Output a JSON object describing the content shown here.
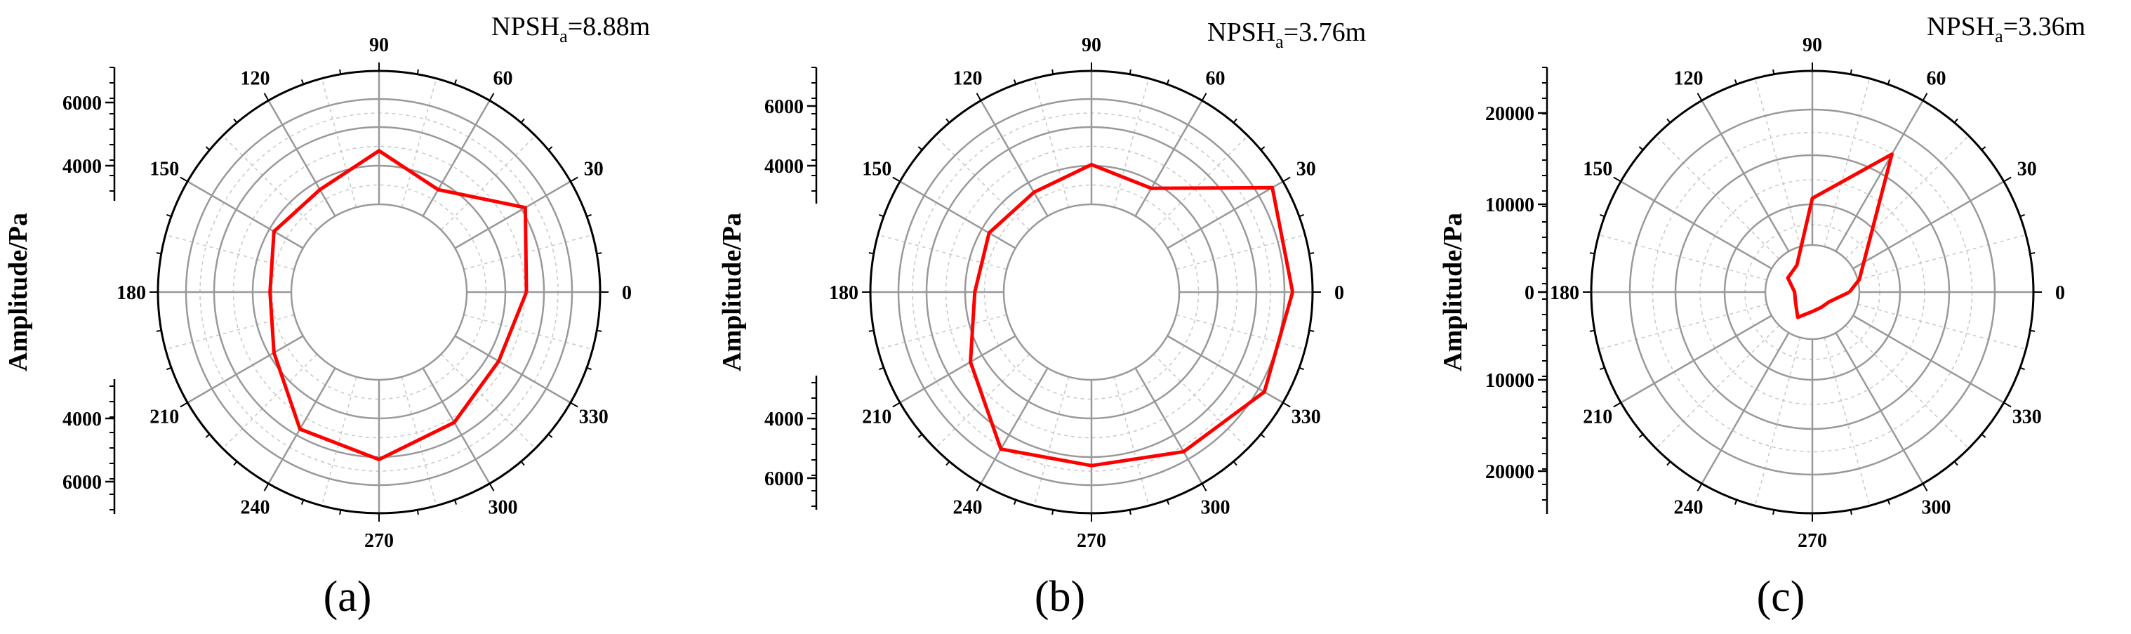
{
  "chart_data": [
    {
      "type": "radar",
      "panel_label": "(a)",
      "annotation": {
        "main": "NPSH",
        "sub": "a",
        "rest": "=8.88m"
      },
      "ylabel": "Amplitude/Pa",
      "angle_ticks": [
        "0",
        "30",
        "60",
        "90",
        "120",
        "150",
        "180",
        "210",
        "240",
        "270",
        "300",
        "330"
      ],
      "radial_ticks": [
        "4000",
        "6000"
      ],
      "rlim": [
        0,
        7200
      ],
      "grid": true,
      "series": [
        {
          "color": "#ff0000",
          "angles": [
            0,
            30,
            60,
            90,
            120,
            150,
            180,
            210,
            240,
            270,
            300,
            330,
            360
          ],
          "values": [
            4800,
            5500,
            3850,
            4600,
            3850,
            3950,
            3550,
            3950,
            5150,
            5450,
            4900,
            4500,
            4800
          ]
        }
      ]
    },
    {
      "type": "radar",
      "panel_label": "(b)",
      "annotation": {
        "main": "NPSH",
        "sub": "a",
        "rest": "=3.76m"
      },
      "ylabel": "Amplitude/Pa",
      "angle_ticks": [
        "0",
        "30",
        "60",
        "90",
        "120",
        "150",
        "180",
        "210",
        "240",
        "270",
        "300",
        "330"
      ],
      "radial_ticks": [
        "4000",
        "6000"
      ],
      "rlim": [
        0,
        7200
      ],
      "grid": true,
      "series": [
        {
          "color": "#ff0000",
          "angles": [
            0,
            30,
            60,
            90,
            120,
            150,
            180,
            210,
            240,
            270,
            300,
            330,
            360
          ],
          "values": [
            6550,
            6800,
            3900,
            4150,
            3750,
            3850,
            3800,
            4550,
            5900,
            5650,
            6000,
            6500,
            6550
          ]
        }
      ]
    },
    {
      "type": "radar",
      "panel_label": "(c)",
      "annotation": {
        "main": "NPSH",
        "sub": "a",
        "rest": "=3.36m"
      },
      "ylabel": "Amplitude/Pa",
      "angle_ticks": [
        "0",
        "30",
        "60",
        "90",
        "120",
        "150",
        "180",
        "210",
        "240",
        "270",
        "300",
        "330"
      ],
      "radial_ticks": [
        "0",
        "10000",
        "20000"
      ],
      "rlim": [
        0,
        25000
      ],
      "grid": true,
      "series": [
        {
          "color": "#ff0000",
          "angles": [
            0,
            15,
            60,
            90,
            120,
            150,
            180,
            210,
            240,
            270,
            300,
            330,
            360
          ],
          "values": [
            4200,
            5500,
            18000,
            10600,
            3500,
            3200,
            2000,
            2200,
            3300,
            2200,
            2000,
            2200,
            4200
          ]
        }
      ]
    }
  ]
}
